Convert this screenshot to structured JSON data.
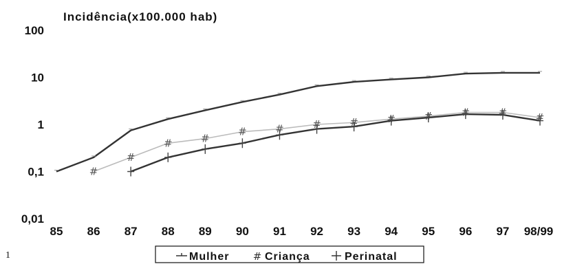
{
  "chart_data": {
    "type": "line",
    "ylabel": "Incidência(x100.000 hab)",
    "yscale": "log",
    "ylim": [
      0.01,
      100
    ],
    "yticks": [
      {
        "value": 100,
        "label": "100"
      },
      {
        "value": 10,
        "label": "10"
      },
      {
        "value": 1,
        "label": "1"
      },
      {
        "value": 0.1,
        "label": "0,1"
      },
      {
        "value": 0.01,
        "label": "0,01"
      }
    ],
    "categories": [
      "85",
      "86",
      "87",
      "88",
      "89",
      "90",
      "91",
      "92",
      "93",
      "94",
      "95",
      "96",
      "97",
      "98/99"
    ],
    "grid": false,
    "legend_position": "bottom",
    "footnote": "1",
    "series": [
      {
        "name": "Mulher",
        "marker": "—",
        "color": "#333333",
        "values": [
          0.1,
          0.2,
          0.75,
          1.3,
          2.0,
          3.0,
          4.3,
          6.5,
          8.0,
          9.0,
          10.0,
          12.0,
          12.5,
          12.5
        ]
      },
      {
        "name": "Criança",
        "marker": "#",
        "color": "#bbbbbb",
        "values": [
          null,
          0.1,
          0.2,
          0.4,
          0.5,
          0.7,
          0.8,
          1.0,
          1.1,
          1.3,
          1.5,
          1.8,
          1.8,
          1.4
        ]
      },
      {
        "name": "Perinatal",
        "marker": "+",
        "color": "#333333",
        "values": [
          null,
          null,
          0.1,
          0.2,
          0.3,
          0.4,
          0.6,
          0.8,
          0.9,
          1.2,
          1.4,
          1.65,
          1.6,
          1.2
        ]
      }
    ]
  }
}
